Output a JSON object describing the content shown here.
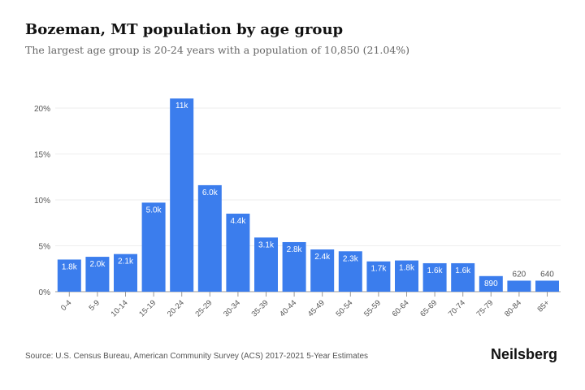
{
  "title": "Bozeman, MT population by age group",
  "subtitle": "The largest age group is 20-24 years with a population of 10,850 (21.04%)",
  "source": "Source: U.S. Census Bureau, American Community Survey (ACS) 2017-2021 5-Year Estimates",
  "brand": "Neilsberg",
  "chart_data": {
    "type": "bar",
    "title": "Bozeman, MT population by age group",
    "xlabel": "",
    "ylabel": "",
    "ylim": [
      0,
      22
    ],
    "yticks": [
      0,
      5,
      10,
      15,
      20
    ],
    "ytick_labels": [
      "0%",
      "5%",
      "10%",
      "15%",
      "20%"
    ],
    "grid": true,
    "bar_color": "#3b7ded",
    "categories": [
      "0-4",
      "5-9",
      "10-14",
      "15-19",
      "20-24",
      "25-29",
      "30-34",
      "35-39",
      "40-44",
      "45-49",
      "50-54",
      "55-59",
      "60-64",
      "65-69",
      "70-74",
      "75-79",
      "80-84",
      "85+"
    ],
    "values": [
      3.5,
      3.8,
      4.1,
      9.7,
      21.04,
      11.6,
      8.5,
      5.9,
      5.4,
      4.6,
      4.4,
      3.3,
      3.4,
      3.1,
      3.1,
      1.7,
      1.2,
      1.2
    ],
    "data_labels": [
      "1.8k",
      "2.0k",
      "2.1k",
      "5.0k",
      "11k",
      "6.0k",
      "4.4k",
      "3.1k",
      "2.8k",
      "2.4k",
      "2.3k",
      "1.7k",
      "1.8k",
      "1.6k",
      "1.6k",
      "890",
      "620",
      "640"
    ]
  }
}
